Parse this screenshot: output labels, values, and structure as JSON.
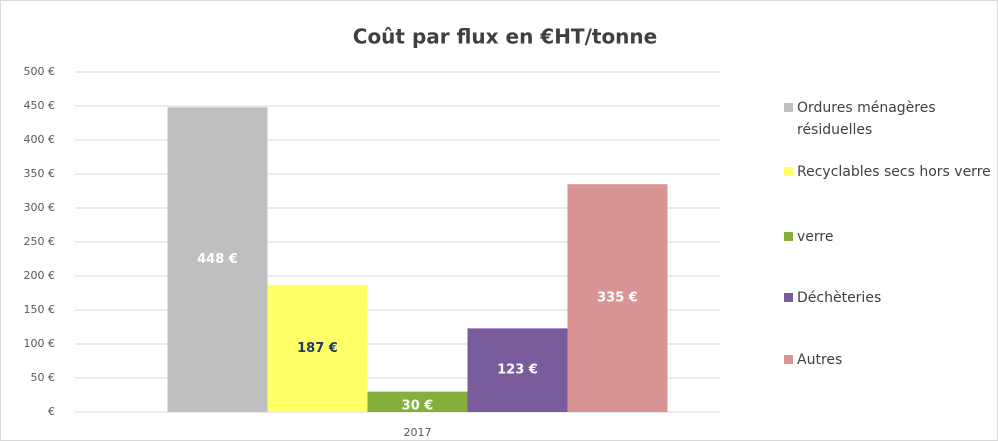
{
  "chart_data": {
    "type": "bar",
    "title": "Coût  par flux en €HT/tonne",
    "categories": [
      "2017"
    ],
    "series": [
      {
        "name": "Ordures ménagères résiduelles",
        "color": "#bfbfbf",
        "label_color": "#ffffff",
        "values": [
          448
        ],
        "value_labels": [
          "448 €"
        ]
      },
      {
        "name": "Recyclables secs hors verre",
        "color": "#ffff66",
        "label_color": "#1f3864",
        "values": [
          187
        ],
        "value_labels": [
          "187 €"
        ]
      },
      {
        "name": "verre",
        "color": "#86b03c",
        "label_color": "#ffffff",
        "values": [
          30
        ],
        "value_labels": [
          "30 €"
        ]
      },
      {
        "name": "Déchèteries",
        "color": "#7a5c9c",
        "label_color": "#ffffff",
        "values": [
          123
        ],
        "value_labels": [
          "123 €"
        ]
      },
      {
        "name": "Autres",
        "color": "#d99594",
        "label_color": "#ffffff",
        "values": [
          335
        ],
        "value_labels": [
          "335 €"
        ]
      }
    ],
    "ylim": [
      0,
      500
    ],
    "yticks": [
      {
        "value": 0,
        "label": "€"
      },
      {
        "value": 50,
        "label": "50 €"
      },
      {
        "value": 100,
        "label": "100 €"
      },
      {
        "value": 150,
        "label": "150 €"
      },
      {
        "value": 200,
        "label": "200 €"
      },
      {
        "value": 250,
        "label": "250 €"
      },
      {
        "value": 300,
        "label": "300 €"
      },
      {
        "value": 350,
        "label": "350 €"
      },
      {
        "value": 400,
        "label": "400 €"
      },
      {
        "value": 450,
        "label": "450 €"
      },
      {
        "value": 500,
        "label": "500 €"
      }
    ],
    "grid": true,
    "legend": "right"
  }
}
